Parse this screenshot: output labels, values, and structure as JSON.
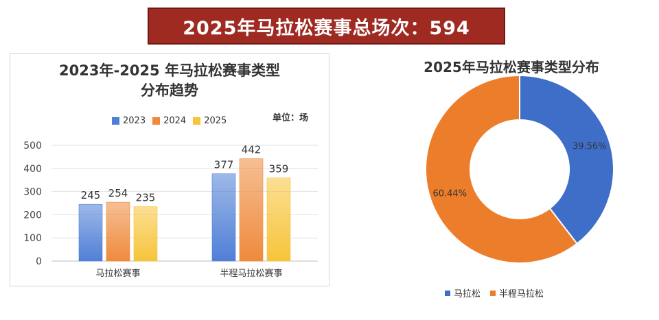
{
  "banner": {
    "text": "2025年马拉松赛事总场次：594"
  },
  "bar_chart": {
    "title_line1": "2023年-2025 年马拉松赛事类型",
    "title_line2": "分布趋势",
    "unit_label": "单位：场",
    "colors": [
      "#4f7fd6",
      "#ef8a3c",
      "#f7c43a"
    ]
  },
  "pie_chart": {
    "title": "2025年马拉松赛事类型分布",
    "colors": [
      "#3f6ec9",
      "#ec7d2b"
    ]
  },
  "chart_data": [
    {
      "type": "bar",
      "categories": [
        "马拉松赛事",
        "半程马拉松赛事"
      ],
      "series": [
        {
          "name": "2023",
          "values": [
            245,
            377
          ]
        },
        {
          "name": "2024",
          "values": [
            254,
            442
          ]
        },
        {
          "name": "2025",
          "values": [
            235,
            359
          ]
        }
      ],
      "ylim": [
        0,
        500
      ],
      "yticks": [
        "0",
        "100",
        "200",
        "300",
        "400",
        "500"
      ],
      "grid": true,
      "legend": "top"
    },
    {
      "type": "pie",
      "labels": [
        "马拉松",
        "半程马拉松"
      ],
      "values": [
        39.56,
        60.44
      ],
      "value_labels": [
        "39.56%",
        "60.44%"
      ],
      "donut": true,
      "legend": "bottom"
    }
  ]
}
